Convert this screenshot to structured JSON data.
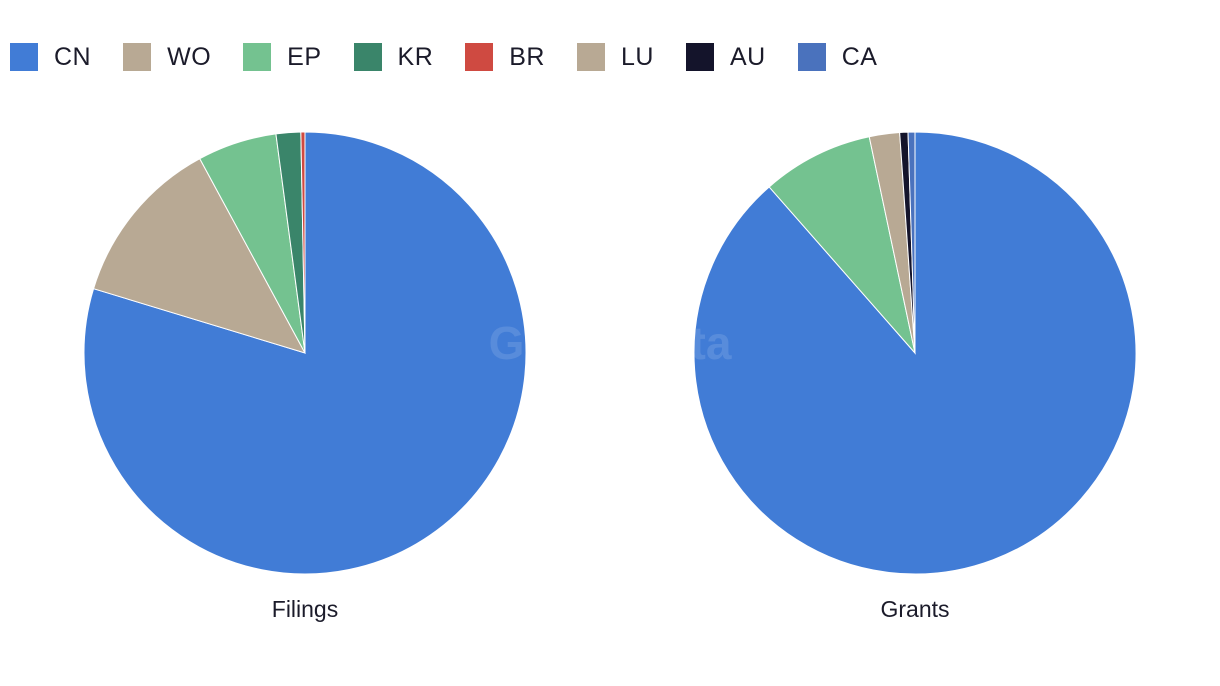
{
  "watermark": "GlobalData",
  "legend": [
    {
      "label": "CN",
      "color": "#417cd6"
    },
    {
      "label": "WO",
      "color": "#b8a994"
    },
    {
      "label": "EP",
      "color": "#74c290"
    },
    {
      "label": "KR",
      "color": "#3a856a"
    },
    {
      "label": "BR",
      "color": "#cf4a41"
    },
    {
      "label": "LU",
      "color": "#b8a994"
    },
    {
      "label": "AU",
      "color": "#14142b"
    },
    {
      "label": "CA",
      "color": "#4a72bd"
    }
  ],
  "chart_data": [
    {
      "type": "pie",
      "title": "Filings",
      "slices": [
        {
          "label": "CN",
          "value": 79.7,
          "color": "#417cd6"
        },
        {
          "label": "WO",
          "value": 12.4,
          "color": "#b8a994"
        },
        {
          "label": "EP",
          "value": 5.8,
          "color": "#74c290"
        },
        {
          "label": "KR",
          "value": 1.8,
          "color": "#3a856a"
        },
        {
          "label": "BR",
          "value": 0.3,
          "color": "#cf4a41"
        }
      ]
    },
    {
      "type": "pie",
      "title": "Grants",
      "slices": [
        {
          "label": "CN",
          "value": 88.0,
          "color": "#417cd6"
        },
        {
          "label": "EP",
          "value": 8.1,
          "color": "#74c290"
        },
        {
          "label": "LU",
          "value": 2.2,
          "color": "#b8a994"
        },
        {
          "label": "AU",
          "value": 0.6,
          "color": "#14142b"
        },
        {
          "label": "CA",
          "value": 0.5,
          "color": "#4a72bd"
        }
      ]
    }
  ]
}
